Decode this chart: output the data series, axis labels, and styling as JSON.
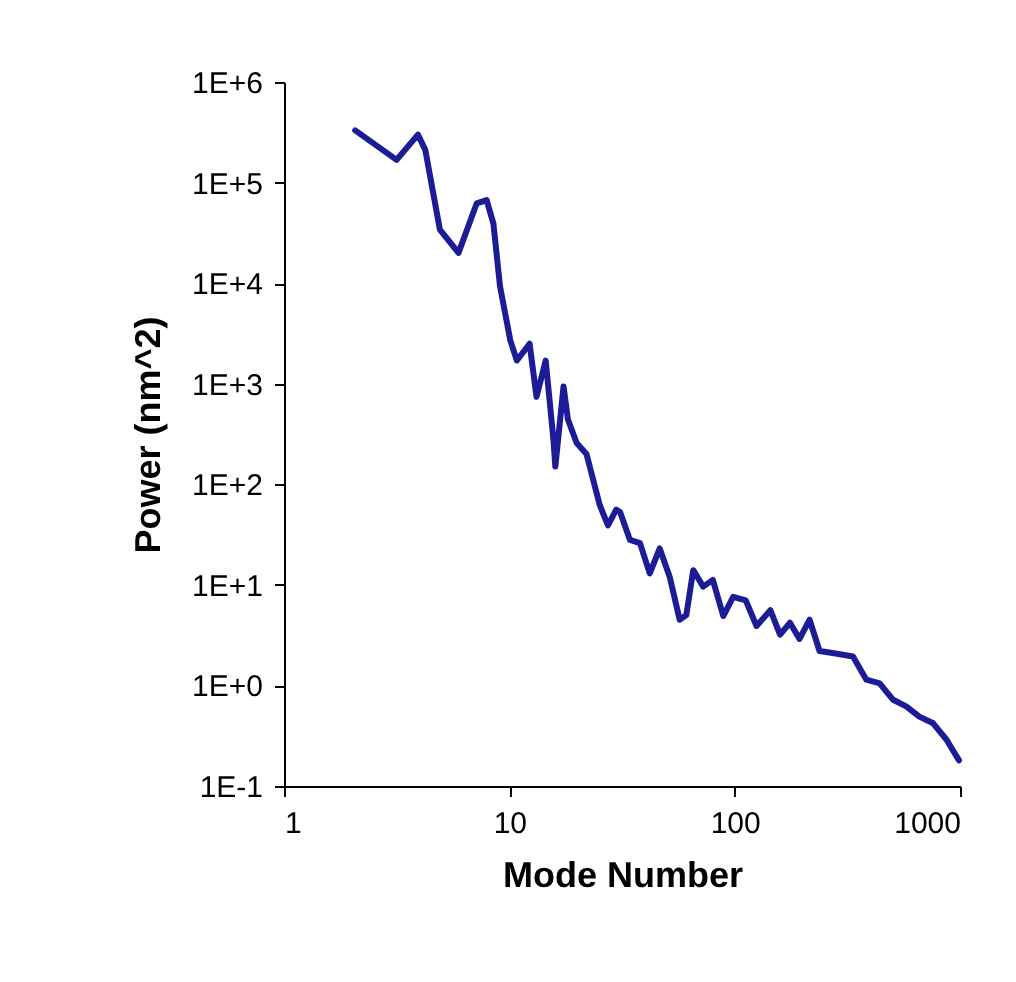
{
  "chart_data": {
    "type": "line",
    "xlabel": "Mode Number",
    "ylabel": "Power (nm^2)",
    "log": "xy",
    "grid": false,
    "xlim": [
      1,
      1000
    ],
    "xticks": [
      1,
      10,
      100,
      1000
    ],
    "ylim": [
      0.1,
      1000000
    ],
    "yticks": [
      {
        "value": 0.1,
        "label": "1E-1"
      },
      {
        "value": 1,
        "label": "1E+0"
      },
      {
        "value": 10,
        "label": "1E+1"
      },
      {
        "value": 100,
        "label": "1E+2"
      },
      {
        "value": 1000,
        "label": "1E+3"
      },
      {
        "value": 10000,
        "label": "1E+4"
      },
      {
        "value": 100000,
        "label": "1E+5"
      },
      {
        "value": 1000000,
        "label": "1E+6"
      }
    ],
    "series": [
      {
        "color": "#1c1c96",
        "x": [
          2.07,
          3.16,
          3.93,
          4.24,
          4.92,
          5.95,
          7.16,
          7.93,
          8.5,
          9.09,
          10.1,
          10.8,
          12.3,
          13.2,
          14.5,
          15.7,
          16.0,
          17.4,
          18.2,
          19.9,
          22,
          25.2,
          27.4,
          29.8,
          31,
          34.3,
          38,
          42,
          46.5,
          51.5,
          57,
          61,
          65.5,
          72.5,
          80,
          89,
          98.5,
          112,
          125,
          144,
          159,
          176,
          194,
          215,
          238,
          272,
          335,
          384,
          440,
          505,
          577,
          660,
          760,
          870,
          990
        ],
        "values": [
          330000,
          168000,
          300000,
          210000,
          34000,
          20000,
          62000,
          67000,
          39000,
          9300,
          2700,
          1700,
          2500,
          740,
          1700,
          275,
          150,
          940,
          440,
          257,
          200,
          62,
          39,
          56,
          53,
          28,
          26,
          13,
          23,
          12,
          4.5,
          5.0,
          14,
          9.6,
          11.2,
          4.9,
          7.6,
          7.0,
          3.9,
          5.6,
          3.2,
          4.2,
          2.9,
          4.5,
          2.2,
          2.1,
          1.94,
          1.14,
          1.05,
          0.72,
          0.62,
          0.49,
          0.42,
          0.29,
          0.18
        ]
      }
    ]
  }
}
